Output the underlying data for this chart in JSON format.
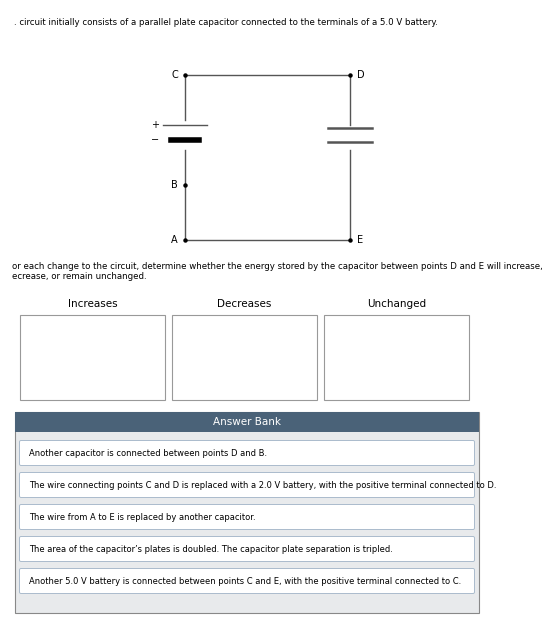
{
  "title_text": ". circuit initially consists of a parallel plate capacitor connected to the terminals of a 5.0 V battery.",
  "description_text": "or each change to the circuit, determine whether the energy stored by the capacitor between points D and E will increase,\necrease, or remain unchanged.",
  "column_labels": [
    "Increases",
    "Decreases",
    "Unchanged"
  ],
  "answer_bank_title": "Answer Bank",
  "answer_items": [
    "Another capacitor is connected between points D and B.",
    "The wire connecting points C and D is replaced with a 2.0 V battery, with the positive terminal connected to D.",
    "The wire from A to E is replaced by another capacitor.",
    "The area of the capacitor’s plates is doubled. The capacitor plate separation is tripled.",
    "Another 5.0 V battery is connected between points C and E, with the positive terminal connected to C."
  ],
  "wire_color": "#555555",
  "text_color": "#000000",
  "answer_bank_header_bg": "#4a6278",
  "answer_bank_header_text": "#ffffff",
  "answer_bank_bg": "#e8eaec",
  "answer_item_bg": "#ffffff",
  "answer_item_border": "#aabbcc",
  "box_border": "#999999"
}
